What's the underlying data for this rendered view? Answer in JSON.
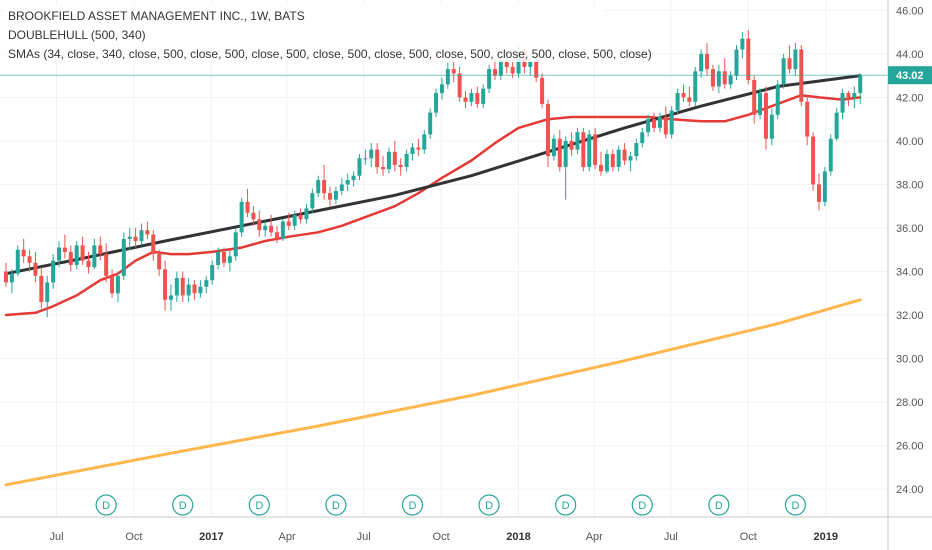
{
  "legend": {
    "title": "BROOKFIELD ASSET MANAGEMENT INC., 1W, BATS",
    "line2": "DOUBLEHULL (500, 340)",
    "line3": "SMAs (34, close, 340, close, 500, close, 500, close, 500, close, 500, close, 500, close, 500, close, 500, close, 500, close)"
  },
  "colors": {
    "up": "#26a69a",
    "down": "#ef5350",
    "sma_fast": "#e53935",
    "sma_mid": "#333333",
    "sma_slow": "#ffb74d",
    "current_price_line": "#26a69a",
    "grid": "#f0f3f6",
    "axis": "#c8c8c8"
  },
  "current_price": "43.02",
  "dividend_marker_label": "D",
  "chart_data": {
    "type": "candlestick",
    "y_axis": {
      "min": 23.5,
      "max": 46.2,
      "ticks": [
        "24.00",
        "26.00",
        "28.00",
        "30.00",
        "32.00",
        "34.00",
        "36.00",
        "38.00",
        "40.00",
        "42.00",
        "44.00",
        "46.00"
      ]
    },
    "x_axis": {
      "ticks": [
        {
          "label": "Jul",
          "date": "2016-07-01",
          "bold": false
        },
        {
          "label": "Oct",
          "date": "2016-10-01",
          "bold": false
        },
        {
          "label": "2017",
          "date": "2017-01-01",
          "bold": true
        },
        {
          "label": "Apr",
          "date": "2017-04-01",
          "bold": false
        },
        {
          "label": "Jul",
          "date": "2017-07-01",
          "bold": false
        },
        {
          "label": "Oct",
          "date": "2017-10-01",
          "bold": false
        },
        {
          "label": "2018",
          "date": "2018-01-01",
          "bold": true
        },
        {
          "label": "Apr",
          "date": "2018-04-01",
          "bold": false
        },
        {
          "label": "Jul",
          "date": "2018-07-01",
          "bold": false
        },
        {
          "label": "Oct",
          "date": "2018-10-01",
          "bold": false
        },
        {
          "label": "2019",
          "date": "2019-01-01",
          "bold": true
        }
      ],
      "range": [
        "2016-05-02",
        "2019-02-25"
      ]
    },
    "dividends": [
      "2016-08-29",
      "2016-11-28",
      "2017-02-27",
      "2017-05-29",
      "2017-08-28",
      "2017-11-27",
      "2018-02-26",
      "2018-05-28",
      "2018-08-27",
      "2018-11-26"
    ],
    "candles": [
      [
        "2016-05-02",
        34.0,
        34.4,
        33.3,
        33.5
      ],
      [
        "2016-05-09",
        33.5,
        34.1,
        33.0,
        33.9
      ],
      [
        "2016-05-16",
        33.9,
        35.2,
        33.8,
        35.0
      ],
      [
        "2016-05-23",
        35.0,
        35.5,
        34.4,
        34.7
      ],
      [
        "2016-05-30",
        34.7,
        35.0,
        34.0,
        34.4
      ],
      [
        "2016-06-06",
        34.4,
        34.9,
        33.5,
        33.8
      ],
      [
        "2016-06-13",
        33.8,
        34.2,
        32.3,
        32.6
      ],
      [
        "2016-06-20",
        32.6,
        33.8,
        31.9,
        33.5
      ],
      [
        "2016-06-27",
        33.5,
        34.8,
        33.2,
        34.5
      ],
      [
        "2016-07-04",
        34.5,
        35.4,
        34.2,
        35.1
      ],
      [
        "2016-07-11",
        35.1,
        35.7,
        34.6,
        34.9
      ],
      [
        "2016-07-18",
        34.9,
        35.2,
        34.0,
        34.3
      ],
      [
        "2016-07-25",
        34.3,
        35.4,
        34.1,
        35.2
      ],
      [
        "2016-08-01",
        35.2,
        35.6,
        34.3,
        34.5
      ],
      [
        "2016-08-08",
        34.5,
        34.9,
        33.9,
        34.2
      ],
      [
        "2016-08-15",
        34.2,
        35.5,
        34.1,
        35.2
      ],
      [
        "2016-08-22",
        35.2,
        35.6,
        34.5,
        34.8
      ],
      [
        "2016-08-29",
        34.8,
        35.3,
        33.5,
        33.8
      ],
      [
        "2016-09-05",
        33.8,
        34.1,
        32.8,
        33.0
      ],
      [
        "2016-09-12",
        33.0,
        34.0,
        32.6,
        33.8
      ],
      [
        "2016-09-19",
        33.8,
        35.8,
        33.6,
        35.5
      ],
      [
        "2016-09-26",
        35.5,
        36.0,
        35.0,
        35.6
      ],
      [
        "2016-10-03",
        35.6,
        36.0,
        35.1,
        35.4
      ],
      [
        "2016-10-10",
        35.4,
        36.2,
        35.2,
        35.9
      ],
      [
        "2016-10-17",
        35.9,
        36.3,
        35.5,
        35.7
      ],
      [
        "2016-10-24",
        35.7,
        35.9,
        34.5,
        34.8
      ],
      [
        "2016-10-31",
        34.8,
        35.0,
        33.8,
        34.1
      ],
      [
        "2016-11-07",
        34.1,
        34.5,
        32.2,
        32.7
      ],
      [
        "2016-11-14",
        32.7,
        33.4,
        32.2,
        32.9
      ],
      [
        "2016-11-21",
        32.9,
        34.0,
        32.6,
        33.7
      ],
      [
        "2016-11-28",
        33.7,
        34.0,
        32.6,
        32.9
      ],
      [
        "2016-12-05",
        32.9,
        33.7,
        32.6,
        33.4
      ],
      [
        "2016-12-12",
        33.4,
        33.6,
        32.7,
        33.0
      ],
      [
        "2016-12-19",
        33.0,
        33.6,
        32.8,
        33.3
      ],
      [
        "2016-12-26",
        33.3,
        33.8,
        33.0,
        33.6
      ],
      [
        "2017-01-02",
        33.6,
        34.5,
        33.4,
        34.3
      ],
      [
        "2017-01-09",
        34.3,
        35.1,
        34.1,
        34.9
      ],
      [
        "2017-01-16",
        34.9,
        35.1,
        34.2,
        34.4
      ],
      [
        "2017-01-23",
        34.4,
        35.0,
        34.0,
        34.7
      ],
      [
        "2017-01-30",
        34.7,
        36.0,
        34.5,
        35.8
      ],
      [
        "2017-02-06",
        35.8,
        37.4,
        35.6,
        37.2
      ],
      [
        "2017-02-13",
        37.2,
        37.8,
        36.5,
        36.7
      ],
      [
        "2017-02-20",
        36.7,
        37.0,
        36.1,
        36.4
      ],
      [
        "2017-02-27",
        36.4,
        36.8,
        35.6,
        35.9
      ],
      [
        "2017-03-06",
        35.9,
        36.3,
        35.6,
        36.1
      ],
      [
        "2017-03-13",
        36.1,
        36.6,
        35.6,
        35.8
      ],
      [
        "2017-03-20",
        35.8,
        36.1,
        35.3,
        35.5
      ],
      [
        "2017-03-27",
        35.5,
        36.4,
        35.4,
        36.3
      ],
      [
        "2017-04-03",
        36.3,
        36.7,
        35.9,
        36.1
      ],
      [
        "2017-04-10",
        36.1,
        36.8,
        35.9,
        36.6
      ],
      [
        "2017-04-17",
        36.6,
        36.9,
        36.2,
        36.4
      ],
      [
        "2017-04-24",
        36.4,
        37.1,
        36.2,
        36.9
      ],
      [
        "2017-05-01",
        36.9,
        37.8,
        36.7,
        37.6
      ],
      [
        "2017-05-08",
        37.6,
        38.4,
        37.4,
        38.2
      ],
      [
        "2017-05-15",
        38.2,
        38.9,
        37.3,
        37.6
      ],
      [
        "2017-05-22",
        37.6,
        37.9,
        37.0,
        37.3
      ],
      [
        "2017-05-29",
        37.3,
        37.9,
        37.1,
        37.7
      ],
      [
        "2017-06-05",
        37.7,
        38.3,
        37.5,
        38.0
      ],
      [
        "2017-06-12",
        38.0,
        38.5,
        37.7,
        38.2
      ],
      [
        "2017-06-19",
        38.2,
        38.6,
        37.9,
        38.4
      ],
      [
        "2017-06-26",
        38.4,
        39.4,
        38.2,
        39.2
      ],
      [
        "2017-07-03",
        39.2,
        39.6,
        38.9,
        39.2
      ],
      [
        "2017-07-10",
        39.2,
        39.9,
        38.8,
        39.6
      ],
      [
        "2017-07-17",
        39.6,
        39.9,
        38.5,
        38.8
      ],
      [
        "2017-07-24",
        38.8,
        39.3,
        38.4,
        38.7
      ],
      [
        "2017-07-31",
        38.7,
        39.7,
        38.5,
        39.5
      ],
      [
        "2017-08-07",
        39.5,
        40.0,
        38.6,
        38.9
      ],
      [
        "2017-08-14",
        38.9,
        39.2,
        38.4,
        38.8
      ],
      [
        "2017-08-21",
        38.8,
        39.6,
        38.6,
        39.4
      ],
      [
        "2017-08-28",
        39.4,
        39.9,
        39.1,
        39.7
      ],
      [
        "2017-09-04",
        39.7,
        40.1,
        39.3,
        39.6
      ],
      [
        "2017-09-11",
        39.6,
        40.5,
        39.4,
        40.3
      ],
      [
        "2017-09-18",
        40.3,
        41.5,
        40.1,
        41.3
      ],
      [
        "2017-09-25",
        41.3,
        42.4,
        41.1,
        42.2
      ],
      [
        "2017-10-02",
        42.2,
        42.9,
        41.9,
        42.6
      ],
      [
        "2017-10-09",
        42.6,
        43.6,
        42.4,
        43.3
      ],
      [
        "2017-10-16",
        43.3,
        43.8,
        42.7,
        43.1
      ],
      [
        "2017-10-23",
        43.1,
        43.4,
        41.8,
        42.0
      ],
      [
        "2017-10-30",
        42.0,
        42.3,
        41.5,
        41.8
      ],
      [
        "2017-11-06",
        41.8,
        42.4,
        41.6,
        42.2
      ],
      [
        "2017-11-13",
        42.2,
        42.5,
        41.5,
        41.7
      ],
      [
        "2017-11-20",
        41.7,
        42.6,
        41.5,
        42.4
      ],
      [
        "2017-11-27",
        42.4,
        43.5,
        42.2,
        43.3
      ],
      [
        "2017-12-04",
        43.3,
        43.8,
        42.8,
        43.0
      ],
      [
        "2017-12-11",
        43.0,
        43.9,
        42.8,
        43.7
      ],
      [
        "2017-12-18",
        43.7,
        44.2,
        43.1,
        43.4
      ],
      [
        "2017-12-25",
        43.4,
        43.7,
        42.9,
        43.1
      ],
      [
        "2018-01-01",
        43.1,
        44.4,
        42.9,
        44.1
      ],
      [
        "2018-01-08",
        44.1,
        44.3,
        43.1,
        43.4
      ],
      [
        "2018-01-15",
        43.4,
        44.0,
        43.0,
        43.7
      ],
      [
        "2018-01-22",
        43.7,
        43.9,
        42.7,
        42.9
      ],
      [
        "2018-01-29",
        42.9,
        43.1,
        41.5,
        41.7
      ],
      [
        "2018-02-05",
        41.7,
        41.9,
        38.8,
        39.3
      ],
      [
        "2018-02-12",
        39.3,
        40.3,
        39.1,
        40.1
      ],
      [
        "2018-02-19",
        40.1,
        40.5,
        38.6,
        38.8
      ],
      [
        "2018-02-26",
        38.8,
        40.2,
        37.3,
        40.0
      ],
      [
        "2018-03-05",
        40.0,
        40.4,
        39.3,
        39.6
      ],
      [
        "2018-03-12",
        39.6,
        40.6,
        39.4,
        40.4
      ],
      [
        "2018-03-19",
        40.4,
        40.6,
        38.6,
        38.8
      ],
      [
        "2018-03-26",
        38.8,
        40.5,
        38.6,
        40.3
      ],
      [
        "2018-04-02",
        40.3,
        40.6,
        38.7,
        38.9
      ],
      [
        "2018-04-09",
        38.9,
        39.5,
        38.4,
        38.6
      ],
      [
        "2018-04-16",
        38.6,
        39.6,
        38.5,
        39.4
      ],
      [
        "2018-04-23",
        39.4,
        39.6,
        38.6,
        38.8
      ],
      [
        "2018-04-30",
        38.8,
        39.8,
        38.6,
        39.6
      ],
      [
        "2018-05-07",
        39.6,
        39.9,
        38.9,
        39.1
      ],
      [
        "2018-05-14",
        39.1,
        39.5,
        38.6,
        39.3
      ],
      [
        "2018-05-21",
        39.3,
        40.1,
        39.1,
        39.9
      ],
      [
        "2018-05-28",
        39.9,
        40.6,
        39.7,
        40.4
      ],
      [
        "2018-06-04",
        40.4,
        41.2,
        40.2,
        41.0
      ],
      [
        "2018-06-11",
        41.0,
        41.3,
        40.4,
        40.6
      ],
      [
        "2018-06-18",
        40.6,
        41.3,
        40.4,
        41.1
      ],
      [
        "2018-06-25",
        41.1,
        41.6,
        40.1,
        40.3
      ],
      [
        "2018-07-02",
        40.3,
        41.6,
        40.1,
        41.4
      ],
      [
        "2018-07-09",
        41.4,
        42.4,
        41.2,
        42.2
      ],
      [
        "2018-07-16",
        42.2,
        42.6,
        41.8,
        42.0
      ],
      [
        "2018-07-23",
        42.0,
        42.5,
        41.6,
        41.8
      ],
      [
        "2018-07-30",
        41.8,
        43.4,
        41.6,
        43.2
      ],
      [
        "2018-08-06",
        43.2,
        44.2,
        42.9,
        44.0
      ],
      [
        "2018-08-13",
        44.0,
        44.5,
        43.0,
        43.3
      ],
      [
        "2018-08-20",
        43.3,
        43.5,
        42.3,
        42.5
      ],
      [
        "2018-08-27",
        42.5,
        43.5,
        42.2,
        43.2
      ],
      [
        "2018-09-03",
        43.2,
        43.8,
        42.4,
        42.6
      ],
      [
        "2018-09-10",
        42.6,
        43.2,
        42.4,
        43.0
      ],
      [
        "2018-09-17",
        43.0,
        44.4,
        42.8,
        44.2
      ],
      [
        "2018-09-24",
        44.2,
        45.0,
        43.8,
        44.7
      ],
      [
        "2018-10-01",
        44.7,
        45.1,
        42.6,
        42.8
      ],
      [
        "2018-10-08",
        42.8,
        43.0,
        40.8,
        41.2
      ],
      [
        "2018-10-15",
        41.2,
        42.4,
        41.0,
        42.2
      ],
      [
        "2018-10-22",
        42.2,
        42.5,
        39.6,
        40.1
      ],
      [
        "2018-10-29",
        40.1,
        41.5,
        39.8,
        41.2
      ],
      [
        "2018-11-05",
        41.2,
        42.8,
        41.0,
        42.6
      ],
      [
        "2018-11-12",
        42.6,
        44.0,
        42.4,
        43.8
      ],
      [
        "2018-11-19",
        43.8,
        44.4,
        43.1,
        43.3
      ],
      [
        "2018-11-26",
        43.3,
        44.5,
        43.0,
        44.2
      ],
      [
        "2018-12-03",
        44.2,
        44.4,
        41.6,
        41.8
      ],
      [
        "2018-12-10",
        41.8,
        42.0,
        39.8,
        40.2
      ],
      [
        "2018-12-17",
        40.2,
        40.4,
        37.7,
        38.0
      ],
      [
        "2018-12-24",
        38.0,
        38.5,
        36.8,
        37.2
      ],
      [
        "2018-12-31",
        37.2,
        38.8,
        37.0,
        38.6
      ],
      [
        "2019-01-07",
        38.6,
        40.3,
        38.4,
        40.1
      ],
      [
        "2019-01-14",
        40.1,
        41.5,
        40.0,
        41.3
      ],
      [
        "2019-01-21",
        41.3,
        42.4,
        41.0,
        42.2
      ],
      [
        "2019-01-28",
        42.2,
        42.3,
        41.6,
        42.0
      ],
      [
        "2019-02-04",
        42.0,
        42.5,
        41.5,
        42.2
      ],
      [
        "2019-02-11",
        42.2,
        43.1,
        41.7,
        43.0
      ]
    ],
    "sma_fast": [
      [
        "2016-05-02",
        32.0
      ],
      [
        "2016-06-06",
        32.1
      ],
      [
        "2016-06-27",
        32.4
      ],
      [
        "2016-07-25",
        32.9
      ],
      [
        "2016-08-22",
        33.6
      ],
      [
        "2016-09-12",
        33.9
      ],
      [
        "2016-10-03",
        34.5
      ],
      [
        "2016-10-24",
        34.9
      ],
      [
        "2016-11-14",
        34.8
      ],
      [
        "2016-12-05",
        34.8
      ],
      [
        "2017-01-02",
        34.9
      ],
      [
        "2017-02-06",
        35.1
      ],
      [
        "2017-03-06",
        35.4
      ],
      [
        "2017-04-03",
        35.6
      ],
      [
        "2017-05-08",
        35.8
      ],
      [
        "2017-06-05",
        36.1
      ],
      [
        "2017-07-03",
        36.5
      ],
      [
        "2017-08-07",
        37.0
      ],
      [
        "2017-09-04",
        37.6
      ],
      [
        "2017-10-02",
        38.3
      ],
      [
        "2017-11-06",
        39.1
      ],
      [
        "2017-12-04",
        39.9
      ],
      [
        "2018-01-01",
        40.6
      ],
      [
        "2018-02-05",
        41.0
      ],
      [
        "2018-03-05",
        41.1
      ],
      [
        "2018-04-02",
        41.1
      ],
      [
        "2018-05-07",
        41.1
      ],
      [
        "2018-06-04",
        41.1
      ],
      [
        "2018-07-02",
        41.0
      ],
      [
        "2018-08-06",
        40.9
      ],
      [
        "2018-09-03",
        40.9
      ],
      [
        "2018-10-01",
        41.2
      ],
      [
        "2018-11-05",
        41.7
      ],
      [
        "2018-12-03",
        42.1
      ],
      [
        "2018-12-24",
        42.0
      ],
      [
        "2019-01-21",
        41.9
      ],
      [
        "2019-02-11",
        42.0
      ]
    ],
    "sma_mid": [
      [
        "2016-05-02",
        33.9
      ],
      [
        "2016-08-01",
        34.6
      ],
      [
        "2016-11-07",
        35.4
      ],
      [
        "2017-02-06",
        36.1
      ],
      [
        "2017-05-08",
        36.8
      ],
      [
        "2017-08-07",
        37.5
      ],
      [
        "2017-11-06",
        38.4
      ],
      [
        "2018-02-05",
        39.5
      ],
      [
        "2018-05-07",
        40.6
      ],
      [
        "2018-08-06",
        41.6
      ],
      [
        "2018-11-05",
        42.5
      ],
      [
        "2019-02-11",
        43.0
      ]
    ],
    "sma_slow": [
      [
        "2016-05-02",
        24.2
      ],
      [
        "2016-11-07",
        25.6
      ],
      [
        "2017-05-08",
        26.9
      ],
      [
        "2017-11-06",
        28.3
      ],
      [
        "2018-05-07",
        29.9
      ],
      [
        "2018-11-05",
        31.6
      ],
      [
        "2019-02-11",
        32.7
      ]
    ]
  }
}
